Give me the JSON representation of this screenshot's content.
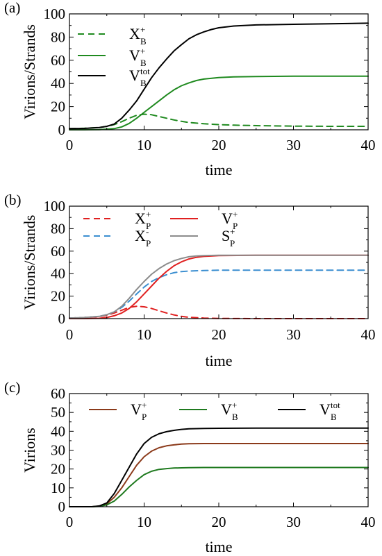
{
  "chart_data": [
    {
      "panel": "(a)",
      "type": "line",
      "xlabel": "time",
      "ylabel": "Virions/Strands",
      "xlim": [
        0,
        40
      ],
      "ylim": [
        0,
        100
      ],
      "xticks": [
        0,
        10,
        20,
        30,
        40
      ],
      "yticks": [
        0,
        20,
        40,
        60,
        80,
        100
      ],
      "legend": "top-left",
      "series": [
        {
          "label": "X",
          "sub": "B",
          "sup": "+",
          "color": "#1f8a1f",
          "dash": true,
          "x": [
            0,
            2,
            4,
            5,
            6,
            7,
            8,
            9,
            10,
            11,
            12,
            13,
            14,
            15,
            16,
            18,
            20,
            22,
            25,
            30,
            35,
            40
          ],
          "y": [
            1,
            1.3,
            2,
            3,
            4.5,
            7,
            10,
            12.5,
            13.5,
            13,
            11.5,
            10,
            8.5,
            7.3,
            6.3,
            5.2,
            4.5,
            4,
            3.6,
            3.2,
            3,
            3
          ]
        },
        {
          "label": "V",
          "sub": "B",
          "sup": "+",
          "color": "#1f8a1f",
          "dash": false,
          "x": [
            0,
            2,
            4,
            6,
            7,
            8,
            9,
            10,
            11,
            12,
            13,
            14,
            15,
            16,
            17,
            18,
            20,
            22,
            25,
            30,
            35,
            40
          ],
          "y": [
            0,
            0,
            0.2,
            1,
            2.5,
            5.5,
            10,
            15,
            20,
            25,
            30,
            34.5,
            38,
            40.5,
            42.5,
            43.8,
            45,
            45.7,
            46,
            46.2,
            46.3,
            46.3
          ]
        },
        {
          "label": "V",
          "sub": "B",
          "sup": "tot",
          "color": "#000000",
          "dash": false,
          "x": [
            0,
            2,
            4,
            5,
            6,
            7,
            8,
            9,
            10,
            11,
            12,
            13,
            14,
            15,
            16,
            17,
            18,
            19,
            20,
            22,
            25,
            30,
            35,
            40
          ],
          "y": [
            1,
            1.2,
            2,
            3,
            5,
            10,
            17,
            25,
            35,
            45,
            53.5,
            61,
            68,
            73.5,
            78.5,
            82,
            84.5,
            86.5,
            88,
            89.5,
            90.5,
            91,
            91.5,
            92
          ]
        }
      ]
    },
    {
      "panel": "(b)",
      "type": "line",
      "xlabel": "time",
      "ylabel": "Virions/Strands",
      "xlim": [
        0,
        40
      ],
      "ylim": [
        0,
        100
      ],
      "xticks": [
        0,
        10,
        20,
        30,
        40
      ],
      "yticks": [
        0,
        20,
        40,
        60,
        80,
        100
      ],
      "legend": "top-left",
      "series": [
        {
          "label": "X",
          "sub": "P",
          "sup": "+",
          "color": "#e02020",
          "dash": true,
          "x": [
            0,
            2,
            4,
            5,
            6,
            7,
            8,
            9,
            10,
            11,
            12,
            13,
            14,
            15,
            16,
            18,
            20,
            25,
            30,
            40
          ],
          "y": [
            0.5,
            1,
            1.8,
            3,
            5,
            7.5,
            10,
            11,
            10.5,
            9,
            7,
            5,
            3.3,
            2,
            1.2,
            0.5,
            0.2,
            0,
            0,
            0
          ]
        },
        {
          "label": "X",
          "sub": "P",
          "sup": "-",
          "color": "#3a8ed0",
          "dash": true,
          "x": [
            0,
            2,
            4,
            5,
            6,
            7,
            8,
            9,
            10,
            11,
            12,
            13,
            14,
            15,
            16,
            18,
            20,
            25,
            30,
            40
          ],
          "y": [
            0.5,
            1,
            2,
            3.5,
            6,
            10,
            15.5,
            22,
            28,
            33,
            36.5,
            39,
            40.8,
            41.8,
            42.3,
            42.8,
            43,
            43,
            43,
            43
          ]
        },
        {
          "label": "V",
          "sub": "P",
          "sup": "+",
          "color": "#e02020",
          "dash": false,
          "x": [
            0,
            2,
            4,
            5,
            6,
            7,
            8,
            9,
            10,
            11,
            12,
            13,
            14,
            15,
            16,
            17,
            18,
            20,
            25,
            30,
            40
          ],
          "y": [
            0,
            0,
            0.3,
            1,
            2.5,
            5,
            9,
            15,
            22,
            29,
            36,
            42,
            47,
            50.5,
            53,
            54.5,
            55.3,
            56,
            56.3,
            56.3,
            56.3
          ]
        },
        {
          "label": "S",
          "sub": "P",
          "sup": "+",
          "color": "#8c8c8c",
          "dash": false,
          "x": [
            0,
            2,
            4,
            5,
            6,
            7,
            8,
            9,
            10,
            11,
            12,
            13,
            14,
            15,
            16,
            17,
            18,
            20,
            25,
            30,
            40
          ],
          "y": [
            0.5,
            1,
            2,
            3.5,
            6,
            11,
            18,
            26,
            33,
            39.5,
            44.5,
            48.5,
            51.5,
            53.5,
            55,
            55.7,
            56,
            56.3,
            56.3,
            56.3,
            56.3
          ]
        }
      ]
    },
    {
      "panel": "(c)",
      "type": "line",
      "xlabel": "time",
      "ylabel": "Virions",
      "xlim": [
        0,
        40
      ],
      "ylim": [
        0,
        60
      ],
      "xticks": [
        0,
        10,
        20,
        30,
        40
      ],
      "yticks": [
        0,
        10,
        20,
        30,
        40,
        50,
        60
      ],
      "legend": "top",
      "series": [
        {
          "label": "V",
          "sub": "P",
          "sup": "+",
          "color": "#8b3a1a",
          "dash": false,
          "x": [
            0,
            2,
            3,
            4,
            5,
            6,
            7,
            8,
            9,
            10,
            11,
            12,
            13,
            14,
            15,
            16,
            18,
            20,
            25,
            30,
            40
          ],
          "y": [
            0,
            0,
            0,
            0.3,
            1.5,
            5,
            10,
            16,
            22,
            26.5,
            29.5,
            31.3,
            32.3,
            32.8,
            33.2,
            33.4,
            33.5,
            33.5,
            33.5,
            33.5,
            33.5
          ]
        },
        {
          "label": "V",
          "sub": "B",
          "sup": "+",
          "color": "#1f7a1f",
          "dash": false,
          "x": [
            0,
            2,
            3,
            4,
            5,
            6,
            7,
            8,
            9,
            10,
            11,
            12,
            13,
            14,
            15,
            16,
            18,
            20,
            25,
            30,
            40
          ],
          "y": [
            0,
            0,
            0,
            0.2,
            1,
            3,
            6.5,
            10.5,
            14,
            17,
            18.8,
            19.8,
            20.2,
            20.5,
            20.6,
            20.7,
            20.8,
            20.8,
            20.8,
            20.8,
            20.8
          ]
        },
        {
          "label": "V",
          "sub": "B",
          "sup": "tot",
          "color": "#000000",
          "dash": false,
          "x": [
            0,
            2,
            3,
            4,
            5,
            6,
            7,
            8,
            9,
            10,
            11,
            12,
            13,
            14,
            15,
            16,
            18,
            20,
            25,
            30,
            40
          ],
          "y": [
            0,
            0,
            0,
            0.4,
            2,
            7,
            14,
            21,
            28,
            33.5,
            36.8,
            38.7,
            39.8,
            40.5,
            41,
            41.3,
            41.5,
            41.6,
            41.7,
            41.7,
            41.7
          ]
        }
      ]
    }
  ]
}
